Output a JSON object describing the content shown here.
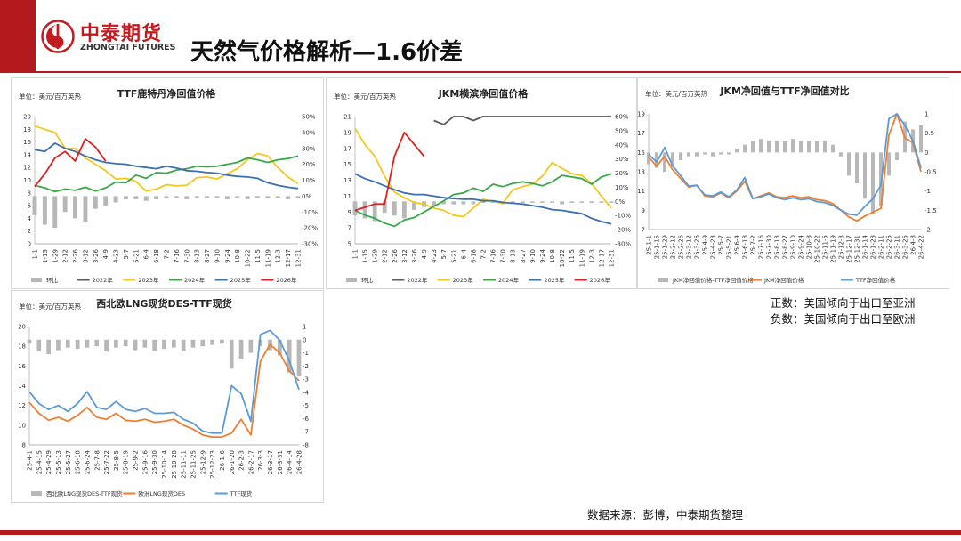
{
  "header": {
    "company_cn": "中泰期货",
    "company_en": "ZHONGTAI FUTURES",
    "page_title": "天然气价格解析—1.6价差",
    "brand_color": "#b31a1e"
  },
  "notes": {
    "positive": "正数：美国倾向于出口至亚洲",
    "negative": "负数：美国倾向于出口至欧洲"
  },
  "source": "数据来源：彭博，中泰期货整理",
  "chart_data": [
    {
      "id": "ttf",
      "type": "line",
      "title": "TTF鹿特丹净回值价格",
      "unit": "单位：美元/百万英热",
      "x": [
        "1-1",
        "1-15",
        "1-29",
        "2-12",
        "2-26",
        "3-12",
        "3-26",
        "4-9",
        "4-23",
        "5-7",
        "5-21",
        "6-4",
        "6-18",
        "7-2",
        "7-16",
        "7-30",
        "8-13",
        "8-27",
        "9-10",
        "9-24",
        "10-8",
        "10-22",
        "11-5",
        "11-19",
        "12-3",
        "12-17",
        "12-31"
      ],
      "ylim": [
        0,
        20
      ],
      "yticks": [
        0,
        2,
        4,
        6,
        8,
        10,
        12,
        14,
        16,
        18,
        20
      ],
      "ylim2": [
        -30,
        50
      ],
      "yticks2": [
        "-30%",
        "-20%",
        "-10%",
        "0%",
        "10%",
        "20%",
        "30%",
        "40%",
        "50%"
      ],
      "series": [
        {
          "name": "环比",
          "kind": "bar",
          "axis": "y2",
          "color": "#b7b7b7",
          "values": [
            -12,
            -18,
            -20,
            -10,
            -14,
            -16,
            -8,
            -6,
            -4,
            -2,
            -2,
            -3,
            -2,
            -1,
            -1,
            -2,
            -1,
            -1,
            -1,
            -2,
            -1,
            -2,
            -1,
            -1,
            -1,
            -2,
            -1
          ]
        },
        {
          "name": "2022年",
          "kind": "line",
          "color": "#5a5a5a",
          "values": null
        },
        {
          "name": "2023年",
          "kind": "line",
          "color": "#f2c81d",
          "values": [
            18.5,
            18,
            17.5,
            15,
            15,
            13.5,
            12.5,
            11.5,
            10.2,
            10.3,
            9.8,
            8.3,
            8.6,
            9.3,
            9.1,
            9.2,
            10.4,
            10.5,
            10.2,
            11,
            11.8,
            13.2,
            14.2,
            13.8,
            12,
            10.5,
            9.5
          ]
        },
        {
          "name": "2024年",
          "kind": "line",
          "color": "#3aa84a",
          "values": [
            9.2,
            8.8,
            8.2,
            8.6,
            8.4,
            8.9,
            8.3,
            8.8,
            9.7,
            9.6,
            10.8,
            10.3,
            11.2,
            11.1,
            11.6,
            11.8,
            12.2,
            12.1,
            12.2,
            12.5,
            12.8,
            13.5,
            13.2,
            12.8,
            13.2,
            13.4,
            13.8
          ]
        },
        {
          "name": "2025年",
          "kind": "line",
          "color": "#3c6fb0",
          "values": [
            14.8,
            14.5,
            15.8,
            15,
            14.5,
            13.8,
            13.2,
            12.8,
            12.6,
            12.5,
            12.2,
            12,
            11.8,
            12.2,
            11.9,
            11.5,
            11.4,
            11.2,
            11.1,
            10.8,
            10.6,
            10.5,
            10.3,
            9.6,
            9.2,
            8.9,
            8.7
          ]
        },
        {
          "name": "2026年",
          "kind": "line",
          "color": "#e02020",
          "values": [
            9,
            11,
            13.5,
            14.5,
            13,
            16.5,
            15.2,
            13,
            null,
            null,
            null,
            null,
            null,
            null,
            null,
            null,
            null,
            null,
            null,
            null,
            null,
            null,
            null,
            null,
            null,
            null,
            null
          ]
        }
      ]
    },
    {
      "id": "jkm",
      "type": "line",
      "title": "JKM横滨净回值价格",
      "unit": "单位：美元/百万英热",
      "x": [
        "1-1",
        "1-15",
        "1-29",
        "2-12",
        "2-26",
        "3-12",
        "3-26",
        "4-9",
        "4-23",
        "5-7",
        "5-21",
        "6-4",
        "6-18",
        "7-2",
        "7-16",
        "7-30",
        "8-13",
        "8-27",
        "9-10",
        "9-24",
        "10-8",
        "10-22",
        "11-5",
        "11-19",
        "12-3",
        "12-17",
        "12-31"
      ],
      "ylim": [
        5,
        21
      ],
      "yticks": [
        5,
        7,
        9,
        11,
        13,
        15,
        17,
        19,
        21
      ],
      "ylim2": [
        -30,
        60
      ],
      "yticks2": [
        "-30%",
        "-20%",
        "-10%",
        "0%",
        "10%",
        "20%",
        "30%",
        "40%",
        "50%",
        "60%"
      ],
      "series": [
        {
          "name": "环比",
          "kind": "bar",
          "axis": "y2",
          "color": "#b7b7b7",
          "values": [
            -10,
            -12,
            -14,
            -8,
            -10,
            -12,
            -6,
            -4,
            -3,
            -2,
            -2,
            -2,
            -2,
            -1,
            -1,
            -2,
            -1,
            -1,
            -1,
            -1,
            -1,
            -2,
            -1,
            -1,
            -1,
            -1,
            -1
          ]
        },
        {
          "name": "2022年",
          "kind": "line",
          "color": "#5a5a5a",
          "values": [
            null,
            null,
            null,
            null,
            null,
            null,
            null,
            null,
            20.5,
            20,
            21,
            21,
            20.5,
            21,
            21,
            21,
            21,
            21,
            21,
            21,
            21,
            21,
            21,
            21,
            21,
            21,
            21
          ]
        },
        {
          "name": "2023年",
          "kind": "line",
          "color": "#f2c81d",
          "values": [
            19.5,
            17.5,
            16,
            13.5,
            11.5,
            10.8,
            10.2,
            10,
            9.5,
            9.2,
            8.6,
            8.4,
            9.5,
            10.6,
            10.3,
            10.1,
            11.8,
            12.2,
            12.5,
            13.5,
            15.2,
            14.5,
            13.8,
            13.6,
            12.6,
            11,
            9.5
          ]
        },
        {
          "name": "2024年",
          "kind": "line",
          "color": "#3aa84a",
          "values": [
            9.2,
            8.6,
            8.2,
            7.6,
            7.2,
            8,
            8.3,
            9,
            9.7,
            10.4,
            11.2,
            11.4,
            12,
            11.6,
            12.5,
            12.2,
            12.6,
            12.8,
            12.6,
            12.3,
            12.8,
            13.6,
            13.4,
            13.2,
            12.5,
            13.4,
            13.8
          ]
        },
        {
          "name": "2025年",
          "kind": "line",
          "color": "#3c6fb0",
          "values": [
            13.8,
            13.2,
            12.8,
            12.3,
            11.8,
            11.4,
            11.2,
            11.2,
            11,
            10.8,
            10.7,
            10.6,
            10.6,
            10.4,
            10.4,
            10.2,
            10.1,
            10,
            9.8,
            9.6,
            9.3,
            9.2,
            9,
            8.8,
            8.2,
            7.8,
            7.5
          ]
        },
        {
          "name": "2026年",
          "kind": "line",
          "color": "#e02020",
          "values": [
            9.2,
            9.6,
            10,
            10,
            16,
            19,
            17.5,
            16,
            null,
            null,
            null,
            null,
            null,
            null,
            null,
            null,
            null,
            null,
            null,
            null,
            null,
            null,
            null,
            null,
            null,
            null,
            null
          ]
        }
      ]
    },
    {
      "id": "jkm-ttf",
      "type": "line",
      "title": "JKM净回值与TTF净回值对比",
      "unit": "单位：美元/百万英热",
      "x": [
        "25-1-1",
        "25-1-15",
        "25-1-29",
        "25-2-12",
        "25-2-26",
        "25-3-12",
        "25-3-26",
        "25-4-9",
        "25-4-23",
        "25-5-7",
        "25-5-21",
        "25-6-4",
        "25-6-18",
        "25-7-2",
        "25-7-16",
        "25-7-30",
        "25-8-13",
        "25-8-27",
        "25-9-10",
        "25-9-24",
        "25-10-8",
        "25-10-22",
        "25-11-5",
        "25-11-19",
        "25-12-3",
        "25-12-17",
        "25-12-31",
        "26-1-14",
        "26-1-28",
        "26-2-11",
        "26-2-25",
        "26-3-11",
        "26-3-25",
        "26-4-8",
        "26-4-22"
      ],
      "ylim": [
        7,
        19
      ],
      "yticks": [
        7,
        9,
        11,
        13,
        15,
        17,
        19
      ],
      "ylim2": [
        -2,
        1
      ],
      "yticks2": [
        "-2",
        "-1.5",
        "-1",
        "-0.5",
        "0",
        "0.5",
        "1"
      ],
      "series": [
        {
          "name": "JKM净回值价格-TTF净回值价格",
          "kind": "bar",
          "axis": "y2",
          "color": "#b7b7b7",
          "values": [
            -0.3,
            -0.4,
            -0.5,
            -0.35,
            -0.2,
            -0.1,
            -0.1,
            -0.05,
            -0.1,
            -0.05,
            -0.05,
            0.1,
            0.2,
            0.3,
            0.35,
            0.3,
            0.3,
            0.3,
            0.35,
            0.3,
            0.3,
            0.3,
            0.3,
            0.2,
            -0.1,
            -0.6,
            -0.8,
            -1.2,
            -1.6,
            -1.4,
            -0.6,
            -0.2,
            0.8,
            0.6,
            0.7
          ]
        },
        {
          "name": "JKM净回值价格",
          "kind": "line",
          "color": "#ee7e32",
          "values": [
            14.5,
            13.6,
            14.6,
            13.2,
            12.3,
            11.4,
            11.6,
            10.5,
            10.4,
            10.8,
            10.3,
            11,
            12,
            10.2,
            10.5,
            10.8,
            10.4,
            10.3,
            10.5,
            10.3,
            10.4,
            10.1,
            10,
            9.7,
            9,
            8.3,
            7.9,
            8.4,
            8.8,
            9.2,
            16.8,
            19,
            16.5,
            16,
            13
          ]
        },
        {
          "name": "TTF净回值价格",
          "kind": "line",
          "color": "#5b9bd5",
          "values": [
            14.8,
            14,
            15.5,
            13.6,
            12.6,
            11.5,
            11.6,
            10.6,
            10.5,
            10.9,
            10.4,
            11.1,
            12.4,
            10.2,
            10.4,
            10.7,
            10.3,
            10.1,
            10.3,
            10.1,
            10.2,
            9.9,
            9.8,
            9.5,
            9,
            8.6,
            8.5,
            9.4,
            10.2,
            11.6,
            18.5,
            19,
            17.8,
            16.2,
            13.4
          ]
        }
      ]
    },
    {
      "id": "nwe-des",
      "type": "line",
      "title": "西北欧LNG现货DES-TTF现货",
      "unit": "单位：美元/百万英热",
      "x": [
        "25-4-1",
        "25-4-15",
        "25-4-29",
        "25-5-13",
        "25-5-27",
        "25-6-10",
        "25-6-24",
        "25-7-8",
        "25-7-22",
        "25-8-5",
        "25-8-19",
        "25-9-2",
        "25-9-16",
        "25-9-30",
        "25-10-14",
        "25-10-28",
        "25-11-11",
        "25-11-25",
        "25-12-9",
        "25-12-23",
        "26-1-6",
        "26-1-20",
        "26-2-3",
        "26-2-17",
        "26-3-3",
        "26-3-17",
        "26-3-31",
        "26-4-14",
        "26-4-28"
      ],
      "ylim": [
        8,
        20
      ],
      "yticks": [
        8,
        10,
        12,
        14,
        16,
        18,
        20
      ],
      "ylim2": [
        -8,
        1
      ],
      "yticks2": [
        "-8",
        "-7",
        "-6",
        "-5",
        "-4",
        "-3",
        "-2",
        "-1",
        "0",
        "1"
      ],
      "series": [
        {
          "name": "西北欧LNG现货DES-TTF现货",
          "kind": "bar",
          "axis": "y2",
          "color": "#b7b7b7",
          "values": [
            -0.3,
            -0.9,
            -1.1,
            -0.8,
            -0.6,
            -0.7,
            -0.6,
            -0.5,
            -0.9,
            -0.6,
            -0.5,
            -0.8,
            -0.6,
            -0.9,
            -0.7,
            -0.6,
            -0.9,
            -0.6,
            -0.5,
            -0.4,
            -0.3,
            -2.2,
            -1.5,
            -1.0,
            -0.5,
            -0.8,
            -1.2,
            -2.5,
            -2.8
          ]
        },
        {
          "name": "欧洲LNG现货DES",
          "kind": "line",
          "color": "#ee7e32",
          "values": [
            12.3,
            11.2,
            10.5,
            10.8,
            10.4,
            11,
            11.8,
            10.8,
            10.6,
            11.2,
            10.5,
            10.4,
            10.6,
            10.3,
            10.4,
            10.6,
            10,
            9.6,
            9,
            8.8,
            8.8,
            9.2,
            10.6,
            9,
            16.5,
            18.2,
            17.3,
            15.5,
            14.5
          ]
        },
        {
          "name": "TTF现货",
          "kind": "line",
          "color": "#5b9bd5",
          "values": [
            13.4,
            12.2,
            11.6,
            12,
            11.4,
            12.2,
            13.4,
            11.8,
            11.6,
            12.4,
            11.6,
            11.4,
            11.7,
            11.2,
            11.2,
            11.3,
            10.6,
            10.2,
            9.4,
            9.2,
            9.2,
            14,
            13.2,
            10.4,
            19.2,
            19.6,
            18.6,
            16.5,
            13.6
          ]
        }
      ]
    }
  ]
}
